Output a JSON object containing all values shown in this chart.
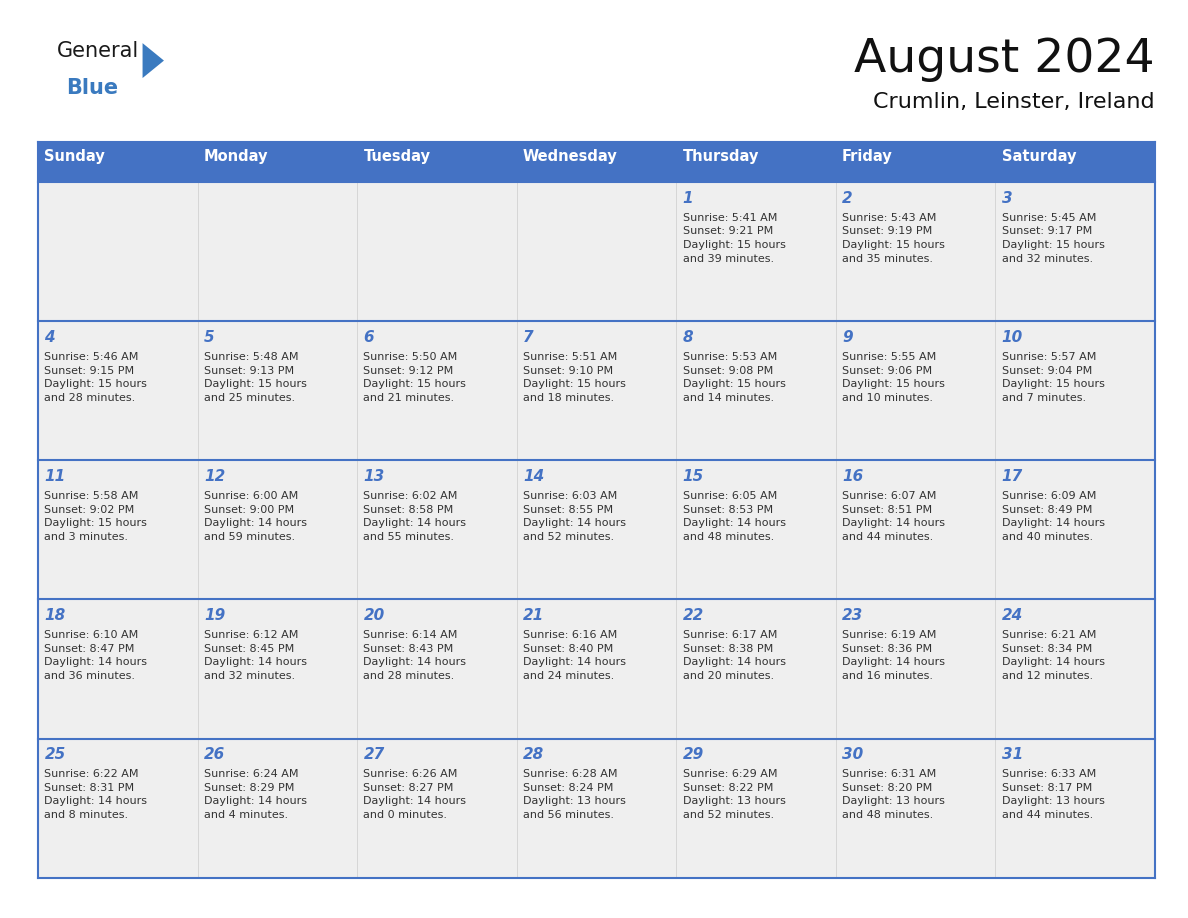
{
  "title": "August 2024",
  "subtitle": "Crumlin, Leinster, Ireland",
  "days_of_week": [
    "Sunday",
    "Monday",
    "Tuesday",
    "Wednesday",
    "Thursday",
    "Friday",
    "Saturday"
  ],
  "header_bg": "#4472C4",
  "header_text": "#FFFFFF",
  "cell_bg": "#EFEFEF",
  "border_color": "#4472C4",
  "row_border_color": "#4472C4",
  "col_border_color": "#CCCCCC",
  "day_number_color": "#4472C4",
  "text_color": "#333333",
  "logo_general_color": "#1a1a1a",
  "logo_blue_color": "#3a7abf",
  "fig_bg": "#FFFFFF",
  "weeks": [
    [
      {
        "day": 0,
        "info": ""
      },
      {
        "day": 0,
        "info": ""
      },
      {
        "day": 0,
        "info": ""
      },
      {
        "day": 0,
        "info": ""
      },
      {
        "day": 1,
        "info": "Sunrise: 5:41 AM\nSunset: 9:21 PM\nDaylight: 15 hours\nand 39 minutes."
      },
      {
        "day": 2,
        "info": "Sunrise: 5:43 AM\nSunset: 9:19 PM\nDaylight: 15 hours\nand 35 minutes."
      },
      {
        "day": 3,
        "info": "Sunrise: 5:45 AM\nSunset: 9:17 PM\nDaylight: 15 hours\nand 32 minutes."
      }
    ],
    [
      {
        "day": 4,
        "info": "Sunrise: 5:46 AM\nSunset: 9:15 PM\nDaylight: 15 hours\nand 28 minutes."
      },
      {
        "day": 5,
        "info": "Sunrise: 5:48 AM\nSunset: 9:13 PM\nDaylight: 15 hours\nand 25 minutes."
      },
      {
        "day": 6,
        "info": "Sunrise: 5:50 AM\nSunset: 9:12 PM\nDaylight: 15 hours\nand 21 minutes."
      },
      {
        "day": 7,
        "info": "Sunrise: 5:51 AM\nSunset: 9:10 PM\nDaylight: 15 hours\nand 18 minutes."
      },
      {
        "day": 8,
        "info": "Sunrise: 5:53 AM\nSunset: 9:08 PM\nDaylight: 15 hours\nand 14 minutes."
      },
      {
        "day": 9,
        "info": "Sunrise: 5:55 AM\nSunset: 9:06 PM\nDaylight: 15 hours\nand 10 minutes."
      },
      {
        "day": 10,
        "info": "Sunrise: 5:57 AM\nSunset: 9:04 PM\nDaylight: 15 hours\nand 7 minutes."
      }
    ],
    [
      {
        "day": 11,
        "info": "Sunrise: 5:58 AM\nSunset: 9:02 PM\nDaylight: 15 hours\nand 3 minutes."
      },
      {
        "day": 12,
        "info": "Sunrise: 6:00 AM\nSunset: 9:00 PM\nDaylight: 14 hours\nand 59 minutes."
      },
      {
        "day": 13,
        "info": "Sunrise: 6:02 AM\nSunset: 8:58 PM\nDaylight: 14 hours\nand 55 minutes."
      },
      {
        "day": 14,
        "info": "Sunrise: 6:03 AM\nSunset: 8:55 PM\nDaylight: 14 hours\nand 52 minutes."
      },
      {
        "day": 15,
        "info": "Sunrise: 6:05 AM\nSunset: 8:53 PM\nDaylight: 14 hours\nand 48 minutes."
      },
      {
        "day": 16,
        "info": "Sunrise: 6:07 AM\nSunset: 8:51 PM\nDaylight: 14 hours\nand 44 minutes."
      },
      {
        "day": 17,
        "info": "Sunrise: 6:09 AM\nSunset: 8:49 PM\nDaylight: 14 hours\nand 40 minutes."
      }
    ],
    [
      {
        "day": 18,
        "info": "Sunrise: 6:10 AM\nSunset: 8:47 PM\nDaylight: 14 hours\nand 36 minutes."
      },
      {
        "day": 19,
        "info": "Sunrise: 6:12 AM\nSunset: 8:45 PM\nDaylight: 14 hours\nand 32 minutes."
      },
      {
        "day": 20,
        "info": "Sunrise: 6:14 AM\nSunset: 8:43 PM\nDaylight: 14 hours\nand 28 minutes."
      },
      {
        "day": 21,
        "info": "Sunrise: 6:16 AM\nSunset: 8:40 PM\nDaylight: 14 hours\nand 24 minutes."
      },
      {
        "day": 22,
        "info": "Sunrise: 6:17 AM\nSunset: 8:38 PM\nDaylight: 14 hours\nand 20 minutes."
      },
      {
        "day": 23,
        "info": "Sunrise: 6:19 AM\nSunset: 8:36 PM\nDaylight: 14 hours\nand 16 minutes."
      },
      {
        "day": 24,
        "info": "Sunrise: 6:21 AM\nSunset: 8:34 PM\nDaylight: 14 hours\nand 12 minutes."
      }
    ],
    [
      {
        "day": 25,
        "info": "Sunrise: 6:22 AM\nSunset: 8:31 PM\nDaylight: 14 hours\nand 8 minutes."
      },
      {
        "day": 26,
        "info": "Sunrise: 6:24 AM\nSunset: 8:29 PM\nDaylight: 14 hours\nand 4 minutes."
      },
      {
        "day": 27,
        "info": "Sunrise: 6:26 AM\nSunset: 8:27 PM\nDaylight: 14 hours\nand 0 minutes."
      },
      {
        "day": 28,
        "info": "Sunrise: 6:28 AM\nSunset: 8:24 PM\nDaylight: 13 hours\nand 56 minutes."
      },
      {
        "day": 29,
        "info": "Sunrise: 6:29 AM\nSunset: 8:22 PM\nDaylight: 13 hours\nand 52 minutes."
      },
      {
        "day": 30,
        "info": "Sunrise: 6:31 AM\nSunset: 8:20 PM\nDaylight: 13 hours\nand 48 minutes."
      },
      {
        "day": 31,
        "info": "Sunrise: 6:33 AM\nSunset: 8:17 PM\nDaylight: 13 hours\nand 44 minutes."
      }
    ]
  ]
}
